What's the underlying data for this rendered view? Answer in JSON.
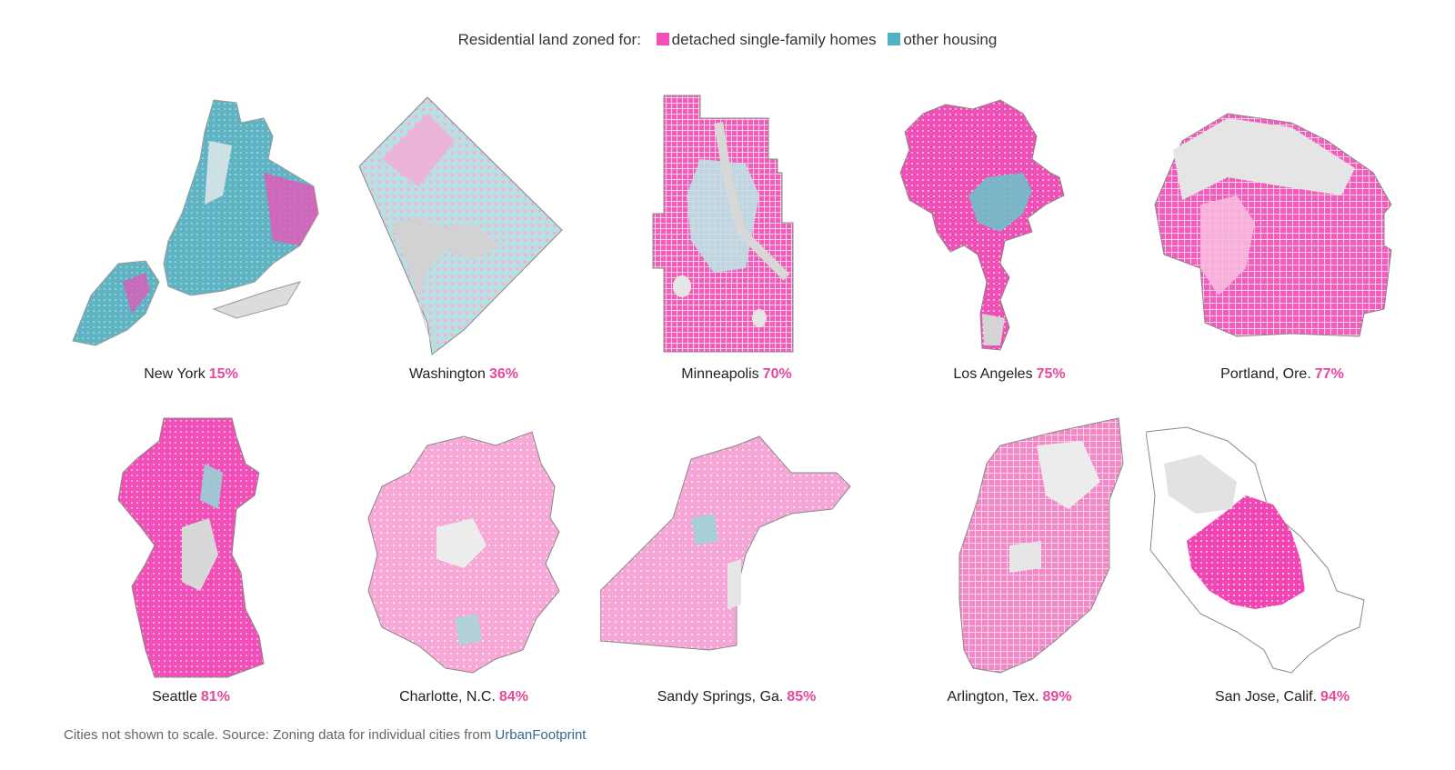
{
  "legend": {
    "lead": "Residential land zoned for:",
    "single_family_label": "detached single-family homes",
    "other_label": "other housing",
    "single_family_color": "#f050b8",
    "other_color": "#4fb3c4"
  },
  "cities": [
    {
      "name": "New York",
      "pct": "15%"
    },
    {
      "name": "Washington",
      "pct": "36%"
    },
    {
      "name": "Minneapolis",
      "pct": "70%"
    },
    {
      "name": "Los Angeles",
      "pct": "75%"
    },
    {
      "name": "Portland, Ore.",
      "pct": "77%"
    },
    {
      "name": "Seattle",
      "pct": "81%"
    },
    {
      "name": "Charlotte, N.C.",
      "pct": "84%"
    },
    {
      "name": "Sandy Springs, Ga.",
      "pct": "85%"
    },
    {
      "name": "Arlington, Tex.",
      "pct": "89%"
    },
    {
      "name": "San Jose, Calif.",
      "pct": "94%"
    }
  ],
  "footer": {
    "note": "Cities not shown to scale.  Source: Zoning data for individual cities from",
    "source_link": "UrbanFootprint"
  }
}
